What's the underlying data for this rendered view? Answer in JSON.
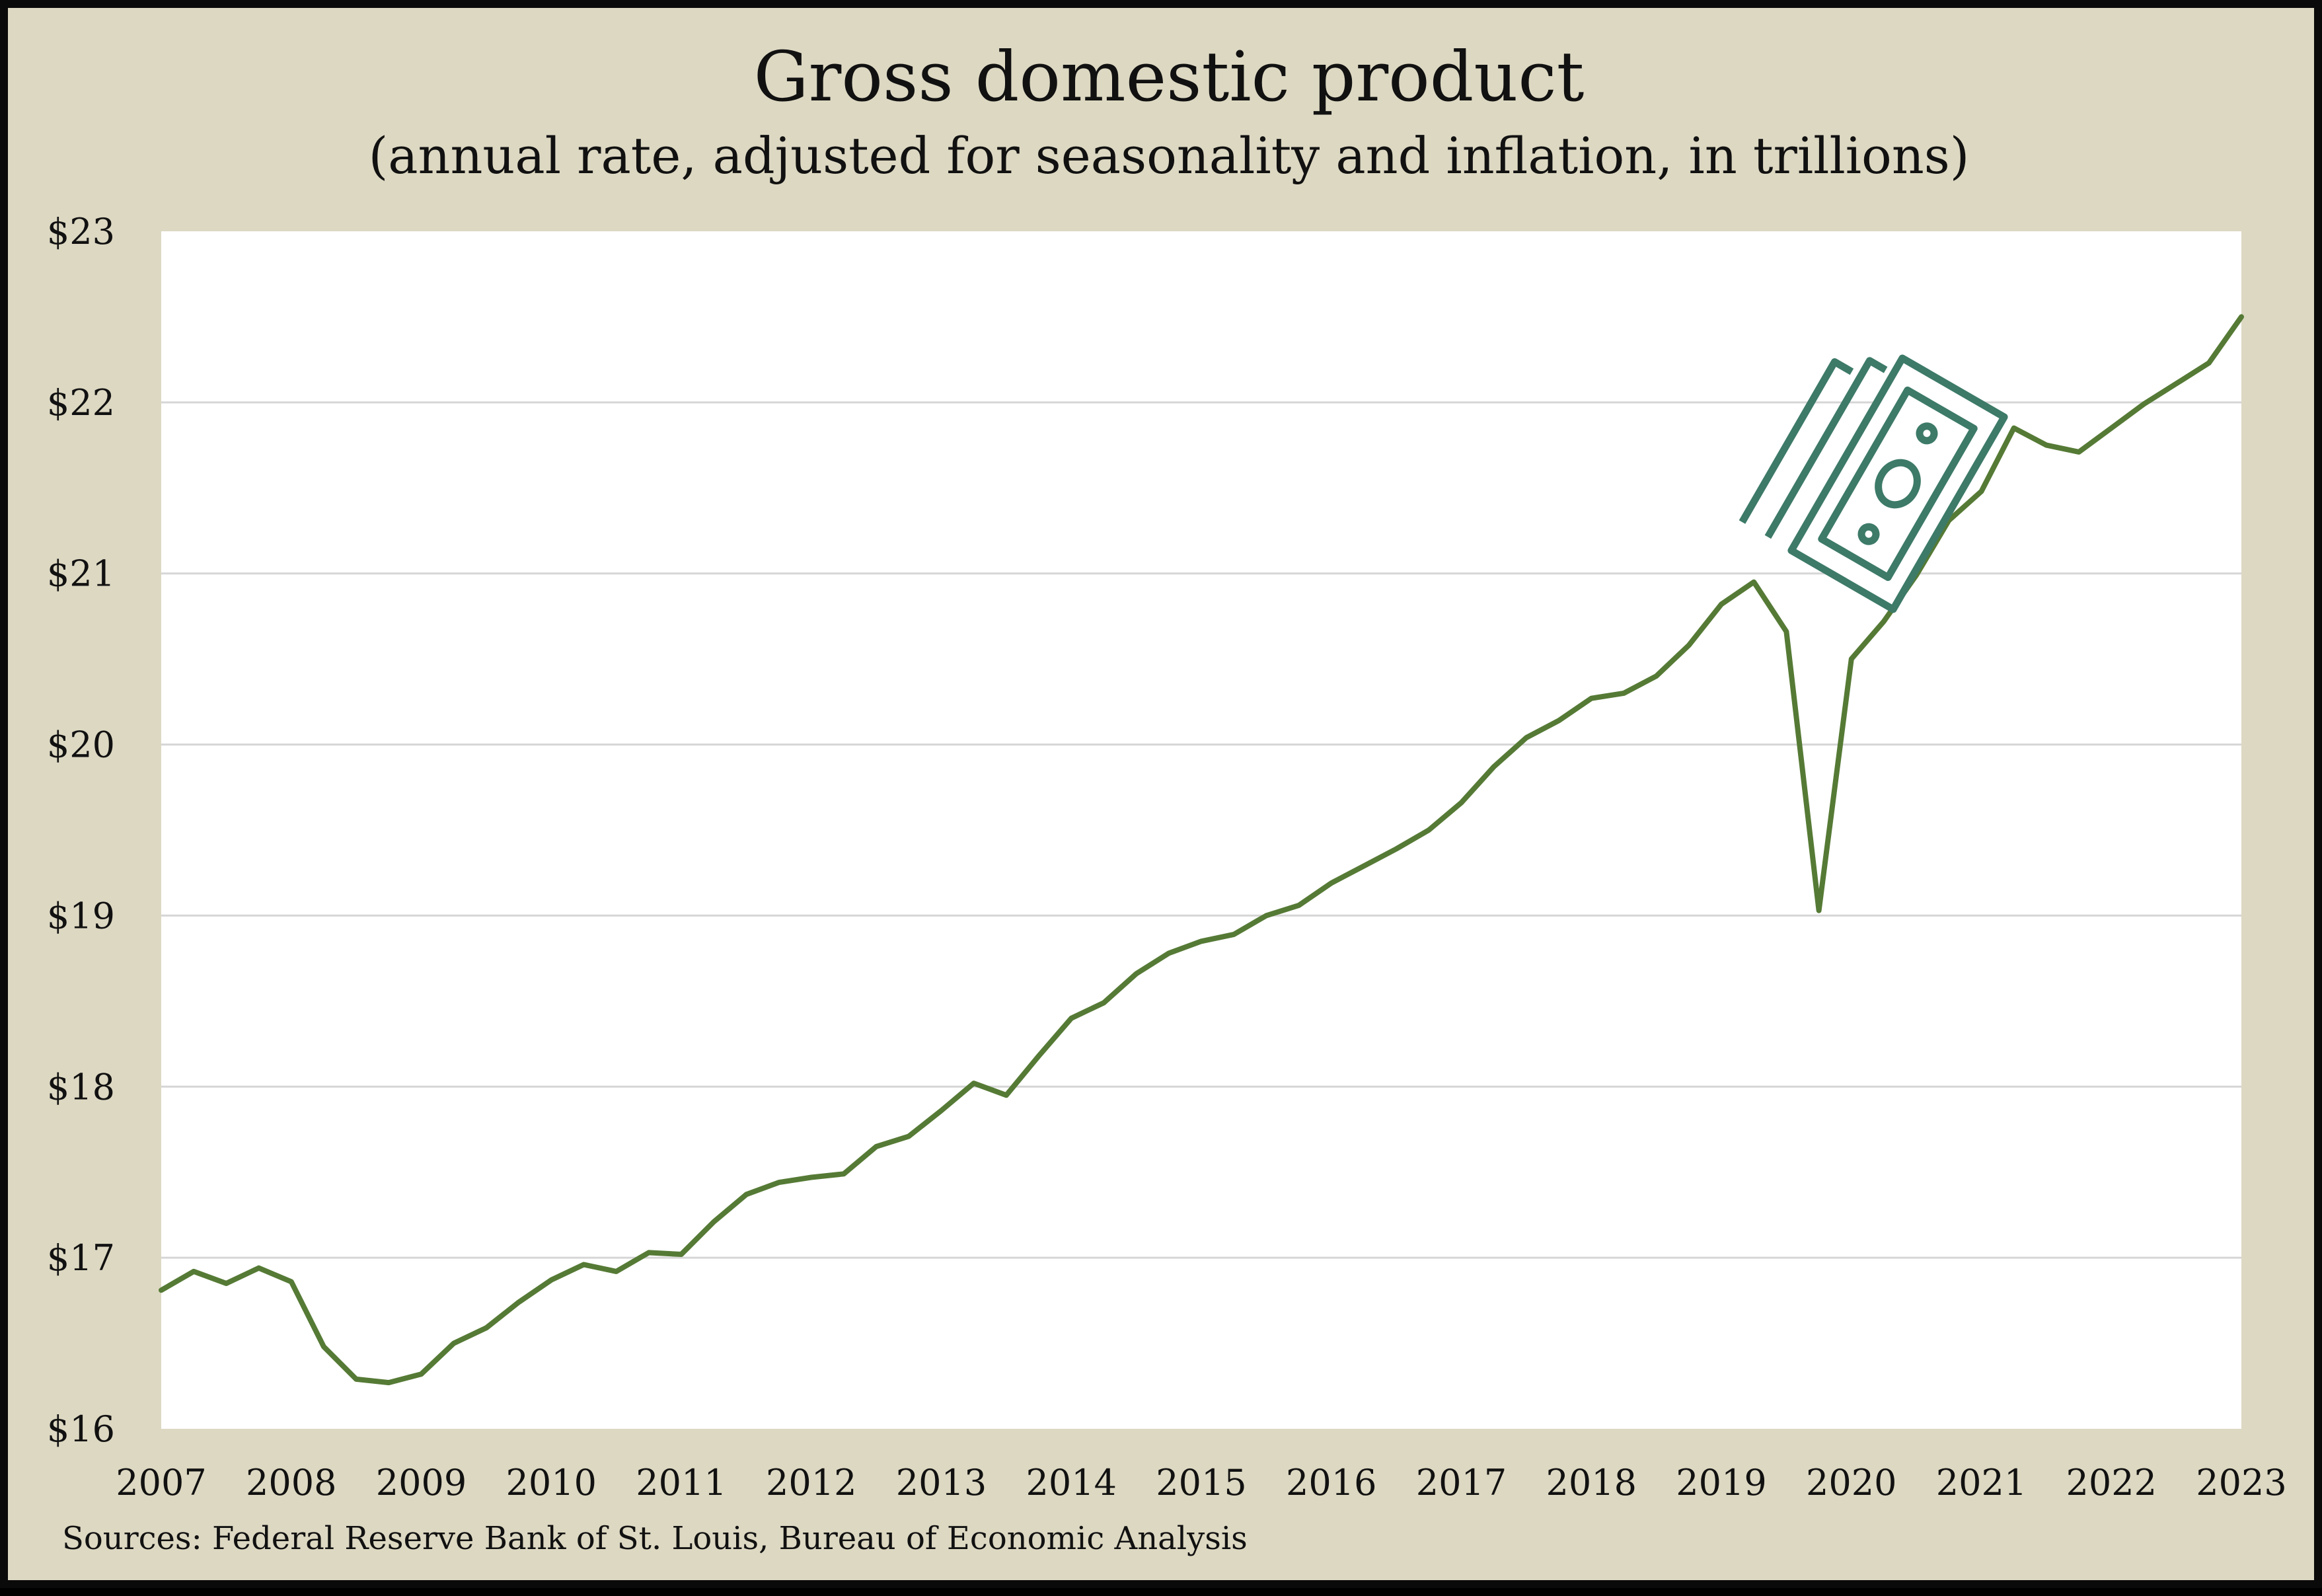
{
  "chart_data": {
    "type": "line",
    "title": "Gross domestic product",
    "subtitle": "(annual rate, adjusted for seasonality and inflation, in trillions)",
    "source": "Sources: Federal Reserve Bank of St. Louis, Bureau of Economic Analysis",
    "ylim": [
      16,
      23
    ],
    "y_ticks": [
      "$16",
      "$17",
      "$18",
      "$19",
      "$20",
      "$21",
      "$22",
      "$23"
    ],
    "x_ticks": [
      "2007",
      "2008",
      "2009",
      "2010",
      "2011",
      "2012",
      "2013",
      "2014",
      "2015",
      "2016",
      "2017",
      "2018",
      "2019",
      "2020",
      "2021",
      "2022",
      "2023"
    ],
    "grid": true,
    "colors": {
      "line": "#557a35",
      "icon": "#3d7a68",
      "background": "#ddd8c2",
      "plot": "#ffffff"
    },
    "icon": "money-bills-icon",
    "series": [
      {
        "x": [
          "2007-Q1",
          "2007-Q2",
          "2007-Q3",
          "2007-Q4",
          "2008-Q1",
          "2008-Q2",
          "2008-Q3",
          "2008-Q4",
          "2009-Q1",
          "2009-Q2",
          "2009-Q3",
          "2009-Q4",
          "2010-Q1",
          "2010-Q2",
          "2010-Q3",
          "2010-Q4",
          "2011-Q1",
          "2011-Q2",
          "2011-Q3",
          "2011-Q4",
          "2012-Q1",
          "2012-Q2",
          "2012-Q3",
          "2012-Q4",
          "2013-Q1",
          "2013-Q2",
          "2013-Q3",
          "2013-Q4",
          "2014-Q1",
          "2014-Q2",
          "2014-Q3",
          "2014-Q4",
          "2015-Q1",
          "2015-Q2",
          "2015-Q3",
          "2015-Q4",
          "2016-Q1",
          "2016-Q2",
          "2016-Q3",
          "2016-Q4",
          "2017-Q1",
          "2017-Q2",
          "2017-Q3",
          "2017-Q4",
          "2018-Q1",
          "2018-Q2",
          "2018-Q3",
          "2018-Q4",
          "2019-Q1",
          "2019-Q2",
          "2019-Q3",
          "2019-Q4",
          "2020-Q1",
          "2020-Q2",
          "2020-Q3",
          "2020-Q4",
          "2021-Q1",
          "2021-Q2",
          "2021-Q3",
          "2021-Q4",
          "2022-Q1",
          "2022-Q2",
          "2022-Q3",
          "2022-Q4",
          "2023-Q1"
        ],
        "values": [
          16.81,
          16.92,
          16.85,
          16.94,
          16.86,
          16.48,
          16.29,
          16.27,
          16.32,
          16.5,
          16.59,
          16.74,
          16.87,
          16.96,
          16.92,
          17.03,
          17.02,
          17.21,
          17.37,
          17.44,
          17.47,
          17.49,
          17.65,
          17.71,
          17.86,
          18.02,
          17.95,
          18.18,
          18.4,
          18.49,
          18.66,
          18.78,
          18.85,
          18.89,
          19.0,
          19.06,
          19.19,
          19.29,
          19.39,
          19.5,
          19.66,
          19.87,
          20.04,
          20.14,
          20.27,
          20.3,
          20.4,
          20.58,
          20.82,
          20.95,
          20.66,
          19.03,
          20.5,
          20.72,
          20.99,
          21.31,
          21.48,
          21.85,
          21.75,
          21.71,
          21.85,
          21.99,
          22.11,
          22.23,
          22.5
        ]
      }
    ]
  }
}
